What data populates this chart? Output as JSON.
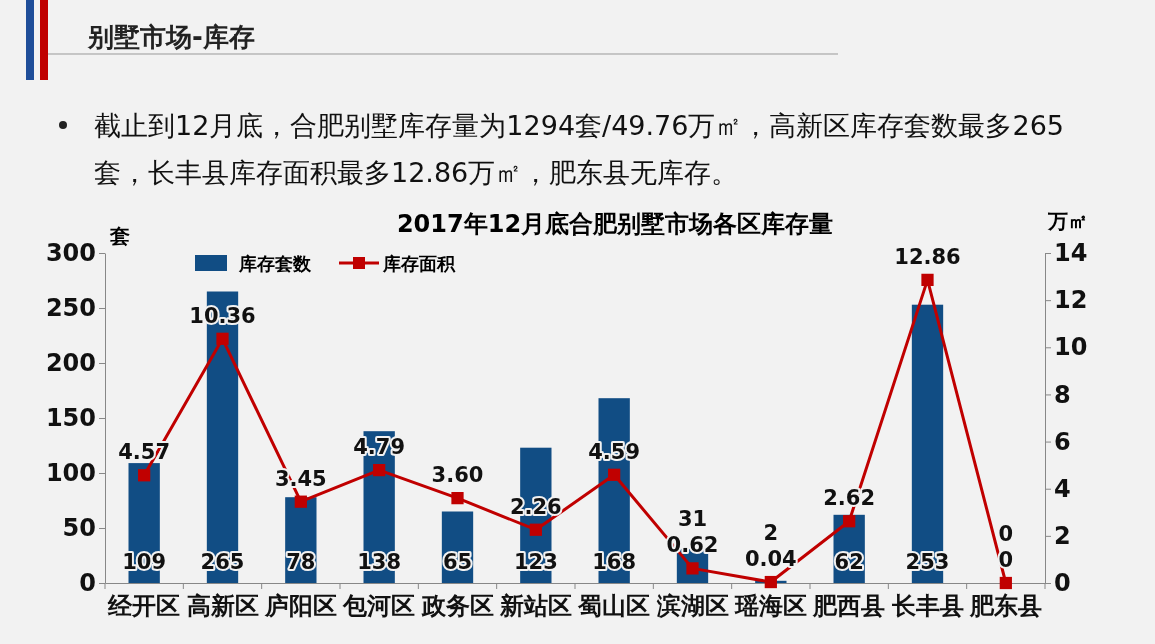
{
  "chart_data": {
    "type": "bar",
    "title": "2017年12月底合肥别墅市场各区库存量",
    "ylabel": "套",
    "y2label": "万㎡",
    "annotations": [
      "别墅市场-库存",
      "截止到12月底，合肥别墅库存量为1294套/49.76万㎡，高新区库存套数最多265套，长丰县库存面积最多12.86万㎡，肥东县无库存。"
    ],
    "categories": [
      "经开区",
      "高新区",
      "庐阳区",
      "包河区",
      "政务区",
      "新站区",
      "蜀山区",
      "滨湖区",
      "瑶海区",
      "肥西县",
      "长丰县",
      "肥东县"
    ],
    "series": [
      {
        "name": "库存套数",
        "color": "#114d84",
        "values": [
          109,
          265,
          78,
          138,
          65,
          123,
          168,
          31,
          2,
          62,
          253,
          0
        ]
      },
      {
        "name": "库存面积",
        "type": "line",
        "axis": "y2",
        "color": "#c00000",
        "marker": "square",
        "values": [
          4.57,
          10.36,
          3.45,
          4.79,
          3.6,
          2.26,
          4.59,
          0.62,
          0.04,
          2.62,
          12.86,
          0
        ]
      }
    ],
    "value_labels": [
      [
        "109",
        "265",
        "78",
        "138",
        "65",
        "123",
        "168",
        "31",
        "2",
        "62",
        "253",
        "0"
      ],
      [
        "4.57",
        "10.36",
        "3.45",
        "4.79",
        "3.60",
        "2.26",
        "4.59",
        "0.62",
        "0.04",
        "2.62",
        "12.86",
        "0"
      ]
    ],
    "ylim": [
      0,
      300
    ],
    "yticks": [
      0,
      50,
      100,
      150,
      200,
      250,
      300
    ],
    "y2lim": [
      0,
      14
    ],
    "y2ticks": [
      0,
      2,
      4,
      6,
      8,
      10,
      12,
      14
    ],
    "grid": false,
    "legend": "top left"
  }
}
